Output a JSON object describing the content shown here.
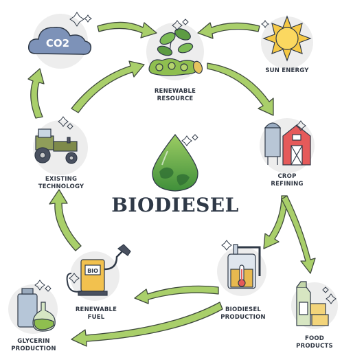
{
  "title": "BIODIESEL",
  "nodes": {
    "co2": {
      "text": "CO2"
    },
    "renewable_resource": {
      "line1": "RENEWABLE",
      "line2": "RESOURCE"
    },
    "sun_energy": {
      "line1": "SUN ENERGY"
    },
    "crop_refining": {
      "line1": "CROP",
      "line2": "REFINING"
    },
    "existing_technology": {
      "line1": "EXISTING",
      "line2": "TECHNOLOGY"
    },
    "biodiesel_production": {
      "line1": "BIODIESEL",
      "line2": "PRODUCTION"
    },
    "food_products": {
      "line1": "FOOD",
      "line2": "PRODUCTS"
    },
    "renewable_fuel": {
      "line1": "RENEWABLE",
      "line2": "FUEL",
      "pump_text": "BIO"
    },
    "glycerin_production": {
      "line1": "GLYCERIN",
      "line2": "PRODUCTION"
    }
  },
  "colors": {
    "arrow_fill": "#a9cf6a",
    "arrow_stroke": "#3f4a3c",
    "leaf_green": "#6aa64a",
    "outline": "#2f3947",
    "sun_yellow": "#f6c945",
    "barn_red": "#e55a5a",
    "cloud_blue": "#7d92b8",
    "tank_blue": "#a9b9cc",
    "pump_yellow": "#f2c14e"
  }
}
